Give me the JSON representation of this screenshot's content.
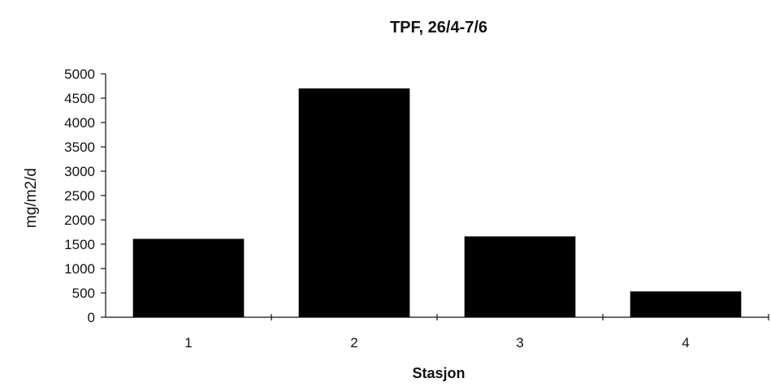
{
  "chart_data": {
    "type": "bar",
    "title": "TPF, 26/4-7/6",
    "xlabel": "Stasjon",
    "ylabel": "mg/m2/d",
    "categories": [
      "1",
      "2",
      "3",
      "4"
    ],
    "values": [
      1610,
      4700,
      1660,
      530
    ],
    "ylim": [
      0,
      5000
    ],
    "yticks": [
      0,
      500,
      1000,
      1500,
      2000,
      2500,
      3000,
      3500,
      4000,
      4500,
      5000
    ],
    "grid": false,
    "bar_color": "#000000"
  }
}
